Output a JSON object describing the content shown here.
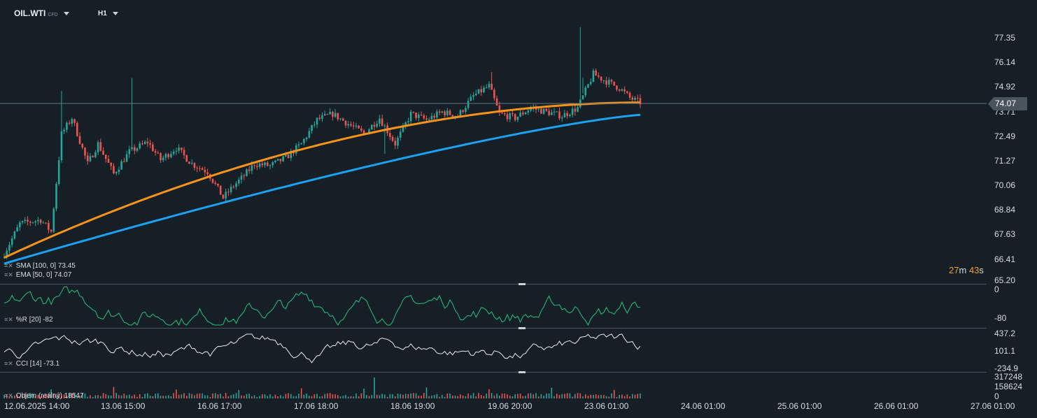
{
  "header": {
    "symbol": "OIL.WTI",
    "symbol_tag": "CFD",
    "timeframe": "H1"
  },
  "indicators": {
    "sma": {
      "label": "SMA",
      "params": "[100, 0]",
      "value": "73.45",
      "color": "#1da1f2"
    },
    "ema": {
      "label": "EMA",
      "params": "[50, 0]",
      "value": "74.07",
      "color": "#f7931a"
    },
    "wr": {
      "label": "%R",
      "params": "[20]",
      "value": "-82"
    },
    "cci": {
      "label": "CCI",
      "params": "[14]",
      "value": "-73.1"
    },
    "volume": {
      "label": "Objem",
      "params": "(reálný)",
      "value": "18547"
    }
  },
  "price_axis": [
    "77.35",
    "76.14",
    "74.92",
    "73.71",
    "72.49",
    "71.27",
    "70.06",
    "68.84",
    "67.63",
    "66.41",
    "65.20"
  ],
  "last_price": "74.07",
  "countdown": {
    "min": "27",
    "min_unit": "m",
    "sec": "43",
    "sec_unit": "s"
  },
  "wr_axis": [
    "0",
    "-80"
  ],
  "cci_axis": [
    "437.2",
    "101.1",
    "-234.9"
  ],
  "vol_axis": [
    "317248",
    "158624",
    "0"
  ],
  "time_axis": [
    "12.06.2025  14:00",
    "13.06  15:00",
    "16.06  17:00",
    "17.06  18:00",
    "18.06  19:00",
    "19.06  20:00",
    "23.06  01:00",
    "24.06  01:00",
    "25.06  01:00",
    "26.06  01:00",
    "27.06  01:00"
  ],
  "colors": {
    "up": "#26a69a",
    "down": "#ef5350",
    "bg": "#161e26",
    "grid": "#1e2a34"
  },
  "chart_data": {
    "type": "candlestick",
    "symbol": "OIL.WTI",
    "interval": "H1",
    "ylim": [
      65.2,
      78.0
    ],
    "anchors": [
      {
        "i": 0,
        "p": 66.5
      },
      {
        "i": 6,
        "p": 68.0
      },
      {
        "i": 14,
        "p": 68.2
      },
      {
        "i": 18,
        "p": 67.6
      },
      {
        "i": 22,
        "p": 72.5
      },
      {
        "i": 26,
        "p": 73.3
      },
      {
        "i": 32,
        "p": 71.0
      },
      {
        "i": 36,
        "p": 72.0
      },
      {
        "i": 42,
        "p": 70.5
      },
      {
        "i": 48,
        "p": 71.6
      },
      {
        "i": 55,
        "p": 72.1
      },
      {
        "i": 60,
        "p": 71.2
      },
      {
        "i": 66,
        "p": 71.8
      },
      {
        "i": 72,
        "p": 71.0
      },
      {
        "i": 78,
        "p": 70.6
      },
      {
        "i": 84,
        "p": 69.3
      },
      {
        "i": 88,
        "p": 69.9
      },
      {
        "i": 92,
        "p": 70.4
      },
      {
        "i": 96,
        "p": 71.0
      },
      {
        "i": 102,
        "p": 70.9
      },
      {
        "i": 108,
        "p": 71.3
      },
      {
        "i": 114,
        "p": 72.0
      },
      {
        "i": 120,
        "p": 73.2
      },
      {
        "i": 126,
        "p": 73.5
      },
      {
        "i": 132,
        "p": 73.0
      },
      {
        "i": 138,
        "p": 72.5
      },
      {
        "i": 144,
        "p": 73.3
      },
      {
        "i": 150,
        "p": 72.0
      },
      {
        "i": 156,
        "p": 73.5
      },
      {
        "i": 162,
        "p": 73.2
      },
      {
        "i": 168,
        "p": 73.6
      },
      {
        "i": 174,
        "p": 73.4
      },
      {
        "i": 180,
        "p": 74.4
      },
      {
        "i": 186,
        "p": 74.9
      },
      {
        "i": 190,
        "p": 73.5
      },
      {
        "i": 196,
        "p": 73.3
      },
      {
        "i": 202,
        "p": 73.8
      },
      {
        "i": 208,
        "p": 73.6
      },
      {
        "i": 214,
        "p": 73.4
      },
      {
        "i": 220,
        "p": 73.8
      },
      {
        "i": 226,
        "p": 75.5
      },
      {
        "i": 230,
        "p": 75.2
      },
      {
        "i": 236,
        "p": 74.8
      },
      {
        "i": 240,
        "p": 74.3
      },
      {
        "i": 244,
        "p": 74.07
      }
    ],
    "n_bars": 245,
    "spikes": [
      {
        "i": 22,
        "high": 74.65
      },
      {
        "i": 49,
        "high": 75.3
      },
      {
        "i": 146,
        "low": 71.5
      },
      {
        "i": 187,
        "high": 75.6
      },
      {
        "i": 221,
        "high": 77.85
      },
      {
        "i": 222,
        "low": 75.3
      }
    ],
    "sma": {
      "start": 66.0,
      "end": 73.45
    },
    "ema": {
      "start": 66.3,
      "end": 74.07
    }
  }
}
